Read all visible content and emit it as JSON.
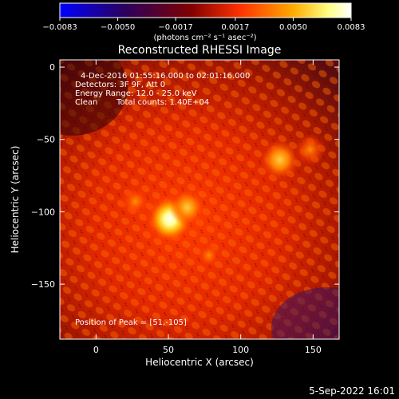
{
  "app": {
    "date_stamp": "5-Sep-2022 16:01"
  },
  "chart_data": {
    "type": "heatmap",
    "title": "Reconstructed RHESSI Image",
    "xlabel": "Heliocentric X (arcsec)",
    "ylabel": "Heliocentric Y (arcsec)",
    "xlim": [
      -25,
      168
    ],
    "ylim": [
      -188,
      5
    ],
    "x_ticks": [
      {
        "value": 0,
        "label": "0"
      },
      {
        "value": 50,
        "label": "50"
      },
      {
        "value": 100,
        "label": "100"
      },
      {
        "value": 150,
        "label": "150"
      }
    ],
    "y_ticks": [
      {
        "value": 0,
        "label": "0"
      },
      {
        "value": -50,
        "label": "−50"
      },
      {
        "value": -100,
        "label": "−100"
      },
      {
        "value": -150,
        "label": "−150"
      }
    ],
    "colorbar": {
      "title": "(photons cm⁻² s⁻¹ asec⁻²)",
      "range": [
        -0.0083,
        0.0083
      ],
      "ticks": [
        {
          "value": -0.0083,
          "label": "−0.0083"
        },
        {
          "value": -0.005,
          "label": "−0.0050"
        },
        {
          "value": -0.0017,
          "label": "−0.0017"
        },
        {
          "value": 0.0017,
          "label": "0.0017"
        },
        {
          "value": 0.005,
          "label": "0.0050"
        },
        {
          "value": 0.0083,
          "label": "0.0083"
        }
      ],
      "colors": [
        "#0000ff",
        "#2a005f",
        "#800000",
        "#ff3200",
        "#ffaa00",
        "#ffff80",
        "#ffffff"
      ]
    },
    "info": {
      "time_range": "4-Dec-2016 01:55:16.000 to 02:01:16.000",
      "detectors": "Detectors: 3F 9F, Att 0",
      "energy_range": "Energy Range: 12.0 - 25.0 keV",
      "method": "Clean",
      "total_counts": "Total counts: 1.40E+04",
      "peak_position": "Position of Peak = [51,-105]"
    },
    "peak": {
      "x": 51,
      "y": -105
    },
    "sources": [
      {
        "x": 51,
        "y": -105,
        "intensity": 1.0
      },
      {
        "x": 63,
        "y": -97,
        "intensity": 0.6
      },
      {
        "x": 127,
        "y": -64,
        "intensity": 0.7
      },
      {
        "x": 148,
        "y": -57,
        "intensity": 0.45
      },
      {
        "x": 27,
        "y": -93,
        "intensity": 0.4
      },
      {
        "x": 78,
        "y": -130,
        "intensity": 0.2
      }
    ]
  }
}
